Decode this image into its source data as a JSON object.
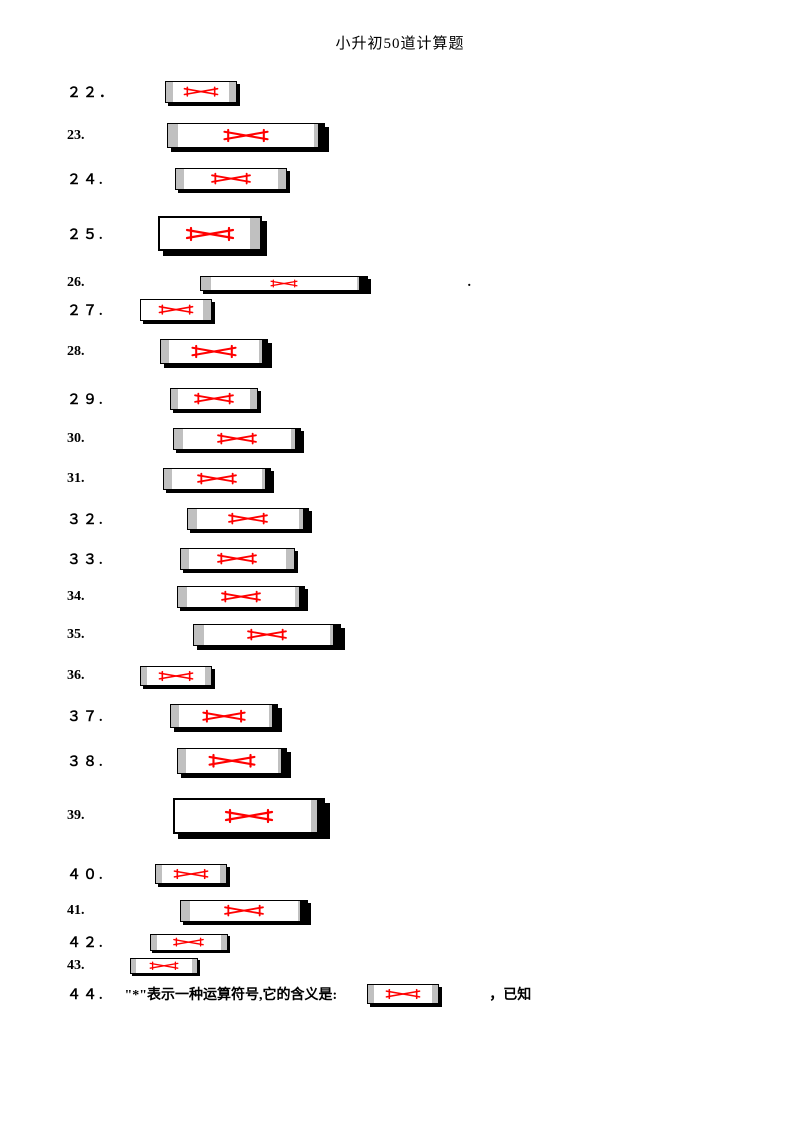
{
  "title": "小升初50道计算题",
  "redColor": "#ff0000",
  "boxBg": "#ffffff",
  "boxBorder": "#000000",
  "capGray": "#c0c0c0",
  "shadowColor": "#000000",
  "rows": [
    {
      "num": "２２．",
      "wide": true,
      "ml": 50,
      "bw": 72,
      "bh": 22,
      "capL": 7,
      "capR": 7,
      "shOff": 3,
      "mb": 20
    },
    {
      "num": "23.",
      "wide": false,
      "ml": 82,
      "bw": 158,
      "bh": 25,
      "capL": 10,
      "capR": 10,
      "shOff": 4,
      "mb": 20,
      "darkR": 6
    },
    {
      "num": "２４.",
      "wide": true,
      "ml": 70,
      "bw": 112,
      "bh": 22,
      "capL": 8,
      "capR": 8,
      "shOff": 3,
      "mb": 26
    },
    {
      "num": "２５.",
      "wide": true,
      "ml": 53,
      "bw": 104,
      "bh": 35,
      "capL": 0,
      "capR": 10,
      "shOff": 5,
      "mb": 24,
      "border": 2
    },
    {
      "num": "26.",
      "wide": false,
      "ml": 115,
      "bw": 168,
      "bh": 15,
      "capL": 10,
      "capR": 10,
      "shOff": 3,
      "mb": 8,
      "darkR": 8,
      "dot": true,
      "dotMl": 100
    },
    {
      "num": "２７.",
      "wide": true,
      "ml": 35,
      "bw": 72,
      "bh": 22,
      "capL": 0,
      "capR": 8,
      "shOff": 3,
      "mb": 18
    },
    {
      "num": "28.",
      "wide": false,
      "ml": 75,
      "bw": 108,
      "bh": 25,
      "capL": 8,
      "capR": 8,
      "shOff": 4,
      "mb": 24,
      "darkR": 5
    },
    {
      "num": "２９.",
      "wide": true,
      "ml": 65,
      "bw": 88,
      "bh": 22,
      "capL": 7,
      "capR": 7,
      "shOff": 3,
      "mb": 18
    },
    {
      "num": "30.",
      "wide": false,
      "ml": 88,
      "bw": 128,
      "bh": 22,
      "capL": 9,
      "capR": 9,
      "shOff": 3,
      "mb": 18,
      "darkR": 5
    },
    {
      "num": "31.",
      "wide": false,
      "ml": 78,
      "bw": 108,
      "bh": 22,
      "capL": 8,
      "capR": 8,
      "shOff": 3,
      "mb": 18,
      "darkR": 5
    },
    {
      "num": "３２.",
      "wide": true,
      "ml": 82,
      "bw": 122,
      "bh": 22,
      "capL": 9,
      "capR": 9,
      "shOff": 3,
      "mb": 18,
      "darkR": 5
    },
    {
      "num": "３３.",
      "wide": true,
      "ml": 75,
      "bw": 115,
      "bh": 22,
      "capL": 8,
      "capR": 8,
      "shOff": 3,
      "mb": 16
    },
    {
      "num": "34.",
      "wide": false,
      "ml": 92,
      "bw": 128,
      "bh": 22,
      "capL": 9,
      "capR": 9,
      "shOff": 3,
      "mb": 16,
      "darkR": 5
    },
    {
      "num": "35.",
      "wide": false,
      "ml": 108,
      "bw": 148,
      "bh": 22,
      "capL": 10,
      "capR": 10,
      "shOff": 4,
      "mb": 20,
      "darkR": 7
    },
    {
      "num": "36.",
      "wide": false,
      "ml": 55,
      "bw": 72,
      "bh": 20,
      "capL": 6,
      "capR": 6,
      "shOff": 3,
      "mb": 18
    },
    {
      "num": "３７.",
      "wide": true,
      "ml": 65,
      "bw": 108,
      "bh": 24,
      "capL": 8,
      "capR": 8,
      "shOff": 4,
      "mb": 20,
      "darkR": 5
    },
    {
      "num": "３８.",
      "wide": true,
      "ml": 72,
      "bw": 110,
      "bh": 26,
      "capL": 8,
      "capR": 8,
      "shOff": 4,
      "mb": 24,
      "darkR": 5
    },
    {
      "num": "39.",
      "wide": false,
      "ml": 88,
      "bw": 152,
      "bh": 36,
      "capL": 0,
      "capR": 12,
      "shOff": 5,
      "mb": 30,
      "border": 2,
      "darkR": 6
    },
    {
      "num": "４０.",
      "wide": true,
      "ml": 50,
      "bw": 72,
      "bh": 20,
      "capL": 6,
      "capR": 6,
      "shOff": 3,
      "mb": 16
    },
    {
      "num": "41.",
      "wide": false,
      "ml": 95,
      "bw": 128,
      "bh": 22,
      "capL": 9,
      "capR": 9,
      "shOff": 3,
      "mb": 10,
      "darkR": 7
    },
    {
      "num": "４２.",
      "wide": true,
      "ml": 45,
      "bw": 78,
      "bh": 17,
      "capL": 6,
      "capR": 6,
      "shOff": 2,
      "mb": 6
    },
    {
      "num": "43.",
      "wide": false,
      "ml": 45,
      "bw": 68,
      "bh": 16,
      "capL": 5,
      "capR": 5,
      "shOff": 2,
      "mb": 10
    }
  ],
  "row44": {
    "num": "４４.",
    "text1": "\"*\"表示一种运算符号,它的含义是:",
    "text2": "，已知",
    "ml": 20,
    "gap1": 30,
    "bw": 72,
    "bh": 20,
    "capL": 6,
    "capR": 6,
    "shOff": 3,
    "gap2": 50
  }
}
